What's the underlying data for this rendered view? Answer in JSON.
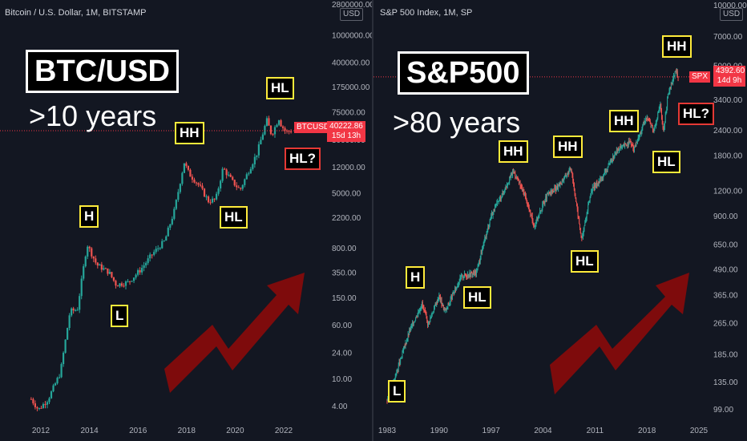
{
  "left": {
    "header": "Bitcoin / U.S. Dollar, 1M, BITSTAMP",
    "title": "BTC/USD",
    "subtitle": ">10 years",
    "currency": "USD",
    "symbol_tag": "BTCUSD",
    "price": "40222.86",
    "countdown": "15d 13h",
    "annotations": [
      "H",
      "L",
      "HH",
      "HL",
      "HL",
      "HL?"
    ]
  },
  "right": {
    "header": "S&P 500 Index, 1M, SP",
    "title": "S&P500",
    "subtitle": ">80 years",
    "currency": "USD",
    "symbol_tag": "SPX",
    "price": "4392.60",
    "countdown": "14d 9h",
    "annotations": [
      "H",
      "L",
      "HL",
      "HH",
      "HH",
      "HL",
      "HH",
      "HL",
      "HL?"
    ]
  },
  "colors": {
    "up": "#26a69a",
    "down": "#ef5350",
    "label_border": "#ffeb3b",
    "arrow": "#8b0a0a",
    "price_line": "#f23645"
  },
  "chart_data": [
    {
      "type": "line",
      "scale": "log",
      "series": [
        {
          "x": [
            2011.6,
            2011.9,
            2012.3,
            2012.8,
            2013.2,
            2013.5,
            2013.9,
            2014.3,
            2014.8,
            2015.1,
            2015.6,
            2016.1,
            2016.6,
            2017.1,
            2017.5,
            2017.9,
            2018.1,
            2018.5,
            2018.9,
            2019.2,
            2019.5,
            2019.9,
            2020.2,
            2020.5,
            2020.9,
            2021.1,
            2021.3,
            2021.5,
            2021.8,
            2021.9,
            2022.1,
            2022.3
          ],
          "values": [
            5,
            3.5,
            5,
            12,
            95,
            100,
            900,
            450,
            350,
            230,
            250,
            380,
            650,
            1000,
            2800,
            14000,
            9500,
            6500,
            3800,
            4000,
            11500,
            7200,
            5500,
            9500,
            19000,
            33000,
            57000,
            35000,
            61000,
            48000,
            38500,
            40222.86
          ]
        }
      ],
      "y_ticks": [
        "4.00",
        "10.00",
        "24.00",
        "60.00",
        "150.00",
        "350.00",
        "800.00",
        "2200.00",
        "5000.00",
        "12000.00",
        "30000.00",
        "75000.00",
        "175000.00",
        "400000.00",
        "1000000.00",
        "2800000.00"
      ],
      "x_ticks": [
        "2012",
        "2014",
        "2016",
        "2018",
        "2020",
        "2022"
      ]
    },
    {
      "type": "line",
      "scale": "log",
      "series": [
        {
          "x": [
            1983.0,
            1984.5,
            1986.0,
            1987.7,
            1988.5,
            1990.0,
            1990.8,
            1993.0,
            1995.0,
            1997.0,
            1998.5,
            2000.0,
            2001.5,
            2002.8,
            2004.5,
            2006.0,
            2007.8,
            2009.2,
            2010.5,
            2012.0,
            2014.0,
            2015.8,
            2016.2,
            2018.0,
            2018.9,
            2019.8,
            2020.2,
            2020.8,
            2021.5,
            2021.9,
            2022.2
          ],
          "values": [
            110,
            160,
            240,
            330,
            260,
            360,
            300,
            450,
            470,
            900,
            1150,
            1500,
            1150,
            800,
            1130,
            1250,
            1550,
            680,
            1200,
            1400,
            1900,
            2100,
            1900,
            2800,
            2400,
            3200,
            2300,
            3500,
            4300,
            4700,
            4392.6
          ]
        }
      ],
      "y_ticks": [
        "99.00",
        "135.00",
        "185.00",
        "265.00",
        "365.00",
        "490.00",
        "650.00",
        "900.00",
        "1200.00",
        "1800.00",
        "2400.00",
        "3400.00",
        "5000.00",
        "7000.00",
        "10000.00"
      ],
      "x_ticks": [
        "1983",
        "1990",
        "1997",
        "2004",
        "2011",
        "2018",
        "2025"
      ]
    }
  ]
}
